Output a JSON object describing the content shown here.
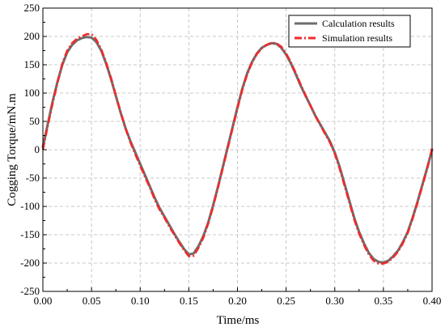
{
  "chart_data": {
    "type": "line",
    "title": "",
    "xlabel": "Time/ms",
    "ylabel": "Cogging Torque/mN.m",
    "xlim": [
      0.0,
      0.4
    ],
    "ylim": [
      -250,
      250
    ],
    "x_ticks": [
      "0.00",
      "0.05",
      "0.10",
      "0.15",
      "0.20",
      "0.25",
      "0.30",
      "0.35",
      "0.40"
    ],
    "y_ticks": [
      "250",
      "200",
      "150",
      "100",
      "50",
      "0",
      "-50",
      "-100",
      "-150",
      "-200",
      "-250"
    ],
    "grid": true,
    "legend_position": "top-right",
    "series": [
      {
        "name": "Calculation results",
        "color": "#6e6e6e",
        "style": "solid",
        "x": [
          0.0,
          0.005,
          0.01,
          0.015,
          0.02,
          0.025,
          0.03,
          0.035,
          0.04,
          0.045,
          0.05,
          0.055,
          0.06,
          0.065,
          0.07,
          0.075,
          0.08,
          0.085,
          0.09,
          0.095,
          0.1,
          0.105,
          0.11,
          0.115,
          0.12,
          0.125,
          0.13,
          0.135,
          0.14,
          0.145,
          0.15,
          0.155,
          0.16,
          0.165,
          0.17,
          0.175,
          0.18,
          0.185,
          0.19,
          0.195,
          0.2,
          0.205,
          0.21,
          0.215,
          0.22,
          0.225,
          0.23,
          0.235,
          0.24,
          0.245,
          0.25,
          0.255,
          0.26,
          0.265,
          0.27,
          0.275,
          0.28,
          0.285,
          0.29,
          0.295,
          0.3,
          0.305,
          0.31,
          0.315,
          0.32,
          0.325,
          0.33,
          0.335,
          0.34,
          0.345,
          0.35,
          0.355,
          0.36,
          0.365,
          0.37,
          0.375,
          0.38,
          0.385,
          0.39,
          0.395,
          0.4
        ],
        "y": [
          5,
          45,
          85,
          120,
          150,
          172,
          185,
          193,
          197,
          199,
          198,
          190,
          175,
          152,
          125,
          95,
          65,
          38,
          15,
          -5,
          -25,
          -45,
          -65,
          -85,
          -103,
          -118,
          -133,
          -148,
          -162,
          -175,
          -185,
          -183,
          -170,
          -152,
          -128,
          -98,
          -65,
          -30,
          5,
          40,
          75,
          108,
          135,
          155,
          170,
          180,
          185,
          188,
          187,
          180,
          168,
          152,
          133,
          113,
          95,
          78,
          60,
          45,
          30,
          15,
          -5,
          -30,
          -60,
          -90,
          -120,
          -145,
          -165,
          -182,
          -193,
          -198,
          -199,
          -196,
          -188,
          -178,
          -163,
          -145,
          -120,
          -92,
          -62,
          -32,
          0
        ]
      },
      {
        "name": "Simulation results",
        "color": "#f22a2a",
        "style": "dash-dot",
        "x": [
          0.0,
          0.005,
          0.01,
          0.015,
          0.02,
          0.025,
          0.03,
          0.035,
          0.04,
          0.045,
          0.05,
          0.055,
          0.06,
          0.065,
          0.07,
          0.075,
          0.08,
          0.085,
          0.09,
          0.095,
          0.1,
          0.105,
          0.11,
          0.115,
          0.12,
          0.125,
          0.13,
          0.135,
          0.14,
          0.145,
          0.15,
          0.155,
          0.16,
          0.165,
          0.17,
          0.175,
          0.18,
          0.185,
          0.19,
          0.195,
          0.2,
          0.205,
          0.21,
          0.215,
          0.22,
          0.225,
          0.23,
          0.235,
          0.24,
          0.245,
          0.25,
          0.255,
          0.26,
          0.265,
          0.27,
          0.275,
          0.28,
          0.285,
          0.29,
          0.295,
          0.3,
          0.305,
          0.31,
          0.315,
          0.32,
          0.325,
          0.33,
          0.335,
          0.34,
          0.345,
          0.35,
          0.355,
          0.36,
          0.365,
          0.37,
          0.375,
          0.38,
          0.385,
          0.39,
          0.395,
          0.4
        ],
        "y": [
          0,
          42,
          82,
          118,
          152,
          175,
          188,
          196,
          200,
          204,
          204,
          194,
          177,
          154,
          127,
          96,
          66,
          37,
          13,
          -8,
          -28,
          -48,
          -67,
          -88,
          -106,
          -120,
          -136,
          -150,
          -164,
          -177,
          -188,
          -187,
          -173,
          -155,
          -130,
          -100,
          -67,
          -32,
          3,
          38,
          73,
          106,
          133,
          154,
          169,
          179,
          185,
          189,
          188,
          182,
          170,
          154,
          135,
          115,
          96,
          78,
          60,
          44,
          28,
          13,
          -7,
          -33,
          -63,
          -93,
          -123,
          -148,
          -168,
          -185,
          -196,
          -201,
          -201,
          -198,
          -190,
          -180,
          -165,
          -147,
          -122,
          -94,
          -64,
          -34,
          2
        ]
      }
    ]
  }
}
